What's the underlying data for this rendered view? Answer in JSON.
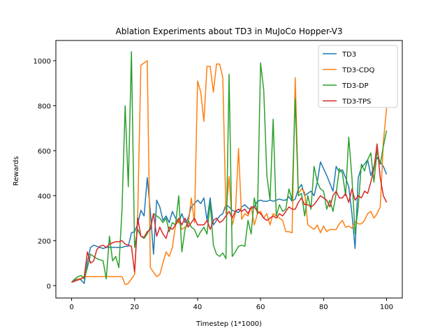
{
  "chart_data": {
    "type": "line",
    "title": "Ablation Experiments about TD3 in MuJoCo Hopper-V3",
    "xlabel": "Timestep (1*1000)",
    "ylabel": "Rewards",
    "xlim": [
      -5,
      105
    ],
    "ylim": [
      -55,
      1090
    ],
    "xticks": [
      0,
      20,
      40,
      60,
      80,
      100
    ],
    "yticks": [
      0,
      200,
      400,
      600,
      800,
      1000
    ],
    "grid": false,
    "legend_position": "top-right",
    "series": [
      {
        "name": "TD3",
        "color": "#1f77b4",
        "values": [
          15,
          25,
          30,
          25,
          10,
          105,
          170,
          180,
          175,
          170,
          165,
          170,
          170,
          170,
          170,
          170,
          170,
          175,
          175,
          235,
          240,
          275,
          335,
          310,
          480,
          330,
          140,
          380,
          350,
          290,
          310,
          280,
          330,
          300,
          280,
          320,
          280,
          300,
          350,
          365,
          380,
          365,
          390,
          290,
          390,
          270,
          290,
          310,
          320,
          360,
          350,
          335,
          330,
          325,
          350,
          360,
          345,
          340,
          350,
          375,
          380,
          375,
          375,
          380,
          375,
          380,
          385,
          380,
          380,
          395,
          375,
          385,
          430,
          450,
          400,
          410,
          420,
          400,
          460,
          550,
          520,
          490,
          455,
          420,
          530,
          505,
          515,
          480,
          440,
          320,
          165,
          480,
          525,
          540,
          560,
          490,
          530,
          570,
          550,
          530,
          495
        ]
      },
      {
        "name": "TD3-CDQ",
        "color": "#ff7f0e",
        "values": [
          15,
          20,
          30,
          30,
          40,
          40,
          40,
          40,
          40,
          40,
          40,
          40,
          40,
          40,
          40,
          40,
          40,
          5,
          10,
          30,
          50,
          320,
          980,
          990,
          1000,
          80,
          60,
          40,
          50,
          100,
          150,
          130,
          170,
          270,
          290,
          250,
          260,
          270,
          390,
          280,
          910,
          860,
          730,
          975,
          975,
          860,
          985,
          985,
          925,
          320,
          485,
          270,
          320,
          610,
          295,
          320,
          310,
          350,
          270,
          320,
          330,
          300,
          320,
          270,
          320,
          310,
          300,
          290,
          240,
          240,
          235,
          925,
          410,
          430,
          415,
          270,
          260,
          250,
          270,
          235,
          265,
          240,
          250,
          250,
          250,
          275,
          290,
          260,
          265,
          255,
          285,
          275,
          275,
          290,
          320,
          330,
          300,
          320,
          350,
          640,
          790
        ]
      },
      {
        "name": "TD3-DP",
        "color": "#2ca02c",
        "values": [
          15,
          30,
          40,
          45,
          30,
          80,
          140,
          130,
          120,
          115,
          110,
          30,
          220,
          110,
          130,
          80,
          340,
          800,
          440,
          1040,
          170,
          250,
          220,
          210,
          230,
          260,
          320,
          310,
          300,
          280,
          300,
          240,
          280,
          270,
          400,
          150,
          250,
          290,
          260,
          250,
          215,
          240,
          260,
          230,
          370,
          180,
          140,
          130,
          145,
          120,
          940,
          130,
          150,
          175,
          180,
          175,
          290,
          230,
          390,
          320,
          990,
          870,
          490,
          380,
          740,
          310,
          360,
          330,
          340,
          430,
          380,
          830,
          400,
          410,
          310,
          400,
          340,
          530,
          460,
          430,
          420,
          340,
          380,
          330,
          410,
          520,
          500,
          400,
          660,
          480,
          230,
          350,
          540,
          510,
          560,
          590,
          460,
          600,
          540,
          620,
          690
        ]
      },
      {
        "name": "TD3-TPS",
        "color": "#d62728",
        "values": [
          15,
          20,
          25,
          30,
          40,
          150,
          100,
          110,
          160,
          175,
          180,
          170,
          185,
          190,
          195,
          195,
          200,
          185,
          180,
          175,
          60,
          300,
          220,
          215,
          240,
          250,
          320,
          220,
          260,
          230,
          210,
          260,
          250,
          270,
          300,
          270,
          300,
          260,
          280,
          300,
          270,
          270,
          270,
          290,
          250,
          290,
          300,
          280,
          290,
          310,
          330,
          300,
          330,
          340,
          330,
          340,
          320,
          350,
          350,
          330,
          320,
          300,
          290,
          300,
          310,
          300,
          320,
          310,
          330,
          350,
          340,
          340,
          370,
          390,
          360,
          360,
          350,
          360,
          380,
          400,
          390,
          380,
          350,
          400,
          420,
          390,
          390,
          410,
          370,
          430,
          380,
          400,
          390,
          420,
          410,
          460,
          520,
          630,
          480,
          400,
          370
        ]
      }
    ]
  }
}
